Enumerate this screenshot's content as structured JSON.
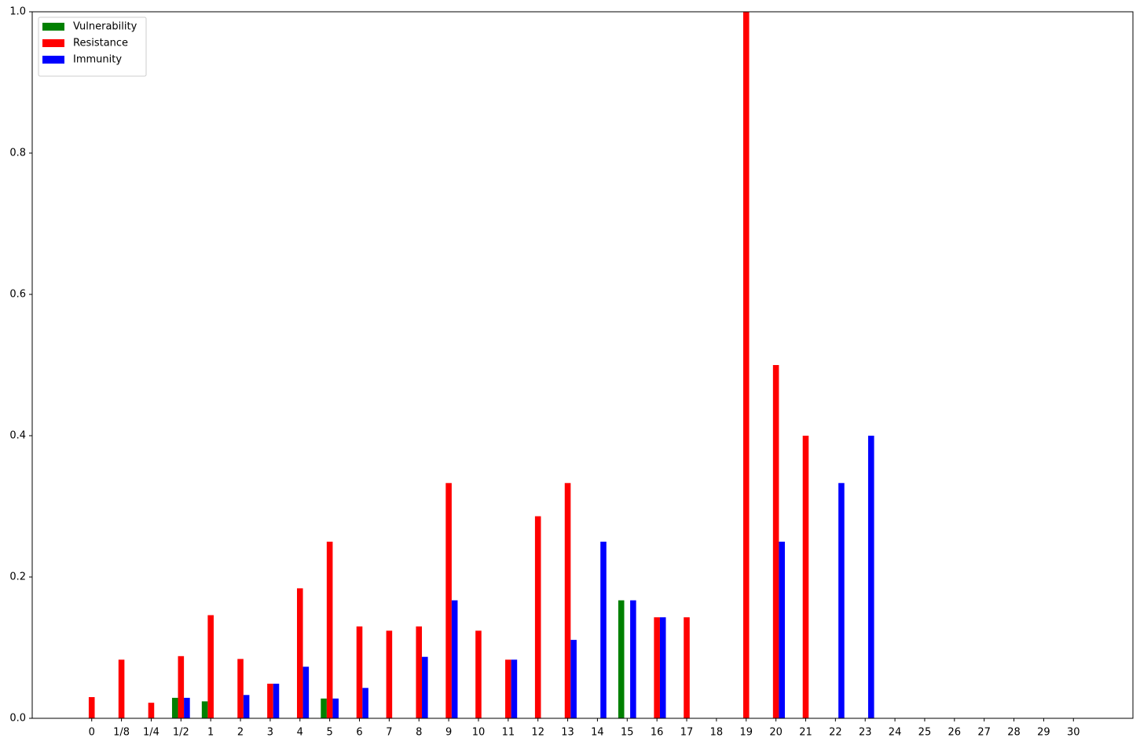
{
  "chart_data": {
    "type": "bar",
    "categories": [
      "0",
      "1/8",
      "1/4",
      "1/2",
      "1",
      "2",
      "3",
      "4",
      "5",
      "6",
      "7",
      "8",
      "9",
      "10",
      "11",
      "12",
      "13",
      "14",
      "15",
      "16",
      "17",
      "18",
      "19",
      "20",
      "21",
      "22",
      "23",
      "24",
      "25",
      "26",
      "27",
      "28",
      "29",
      "30"
    ],
    "series": [
      {
        "name": "Vulnerability",
        "color": "#008000",
        "values": [
          0,
          0,
          0,
          0.029,
          0.024,
          0,
          0,
          0,
          0.028,
          0,
          0,
          0,
          0,
          0,
          0,
          0,
          0,
          0,
          0.167,
          0,
          0,
          0,
          0,
          0,
          0,
          0,
          0,
          0,
          0,
          0,
          0,
          0,
          0,
          0
        ]
      },
      {
        "name": "Resistance",
        "color": "#ff0000",
        "values": [
          0.03,
          0.083,
          0.022,
          0.088,
          0.146,
          0.084,
          0.049,
          0.184,
          0.25,
          0.13,
          0.124,
          0.13,
          0.333,
          0.124,
          0.083,
          0.286,
          0.333,
          0,
          0,
          0.143,
          0.143,
          0,
          1.0,
          0.5,
          0.4,
          0,
          0,
          0,
          0,
          0,
          0,
          0,
          0,
          0
        ]
      },
      {
        "name": "Immunity",
        "color": "#0000ff",
        "values": [
          0,
          0,
          0,
          0.029,
          0,
          0.033,
          0.049,
          0.073,
          0.028,
          0.043,
          0,
          0.087,
          0.167,
          0,
          0.083,
          0,
          0.111,
          0.25,
          0.167,
          0.143,
          0,
          0,
          0,
          0.25,
          0,
          0.333,
          0.4,
          0,
          0,
          0,
          0,
          0,
          0,
          0
        ]
      }
    ],
    "ylim": [
      0,
      1
    ],
    "yticks": [
      {
        "value": 0,
        "label": "0.0"
      },
      {
        "value": 0.2,
        "label": "0.2"
      },
      {
        "value": 0.4,
        "label": "0.4"
      },
      {
        "value": 0.6,
        "label": "0.6"
      },
      {
        "value": 0.8,
        "label": "0.8"
      },
      {
        "value": 1,
        "label": "1.0"
      }
    ],
    "legend": "upper left"
  }
}
